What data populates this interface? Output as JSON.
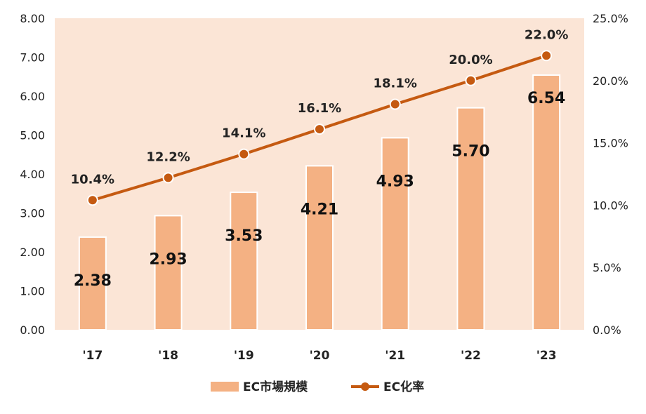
{
  "chart_data": {
    "type": "bar",
    "categories": [
      "'17",
      "'18",
      "'19",
      "'20",
      "'21",
      "'22",
      "'23"
    ],
    "series": [
      {
        "name": "EC市場規模",
        "type": "bar",
        "axis": "left",
        "values": [
          2.38,
          2.93,
          3.53,
          4.21,
          4.93,
          5.7,
          6.54
        ],
        "labels": [
          "2.38",
          "2.93",
          "3.53",
          "4.21",
          "4.93",
          "5.70",
          "6.54"
        ],
        "color": "#f4b183"
      },
      {
        "name": "EC化率",
        "type": "line",
        "axis": "right",
        "values": [
          10.4,
          12.2,
          14.1,
          16.1,
          18.1,
          20.0,
          22.0
        ],
        "labels": [
          "10.4%",
          "12.2%",
          "14.1%",
          "16.1%",
          "18.1%",
          "20.0%",
          "22.0%"
        ],
        "color": "#c55a11"
      }
    ],
    "y_left": {
      "min": 0,
      "max": 8,
      "ticks": [
        0,
        1,
        2,
        3,
        4,
        5,
        6,
        7,
        8
      ],
      "tick_labels": [
        "0.00",
        "1.00",
        "2.00",
        "3.00",
        "4.00",
        "5.00",
        "6.00",
        "7.00",
        "8.00"
      ]
    },
    "y_right": {
      "min": 0,
      "max": 25,
      "ticks": [
        0,
        5,
        10,
        15,
        20,
        25
      ],
      "tick_labels": [
        "0.0%",
        "5.0%",
        "10.0%",
        "15.0%",
        "20.0%",
        "25.0%"
      ]
    },
    "plot_background": "#fbe5d6",
    "grid": false,
    "legend_position": "bottom",
    "title": "",
    "xlabel": "",
    "ylabel": ""
  }
}
